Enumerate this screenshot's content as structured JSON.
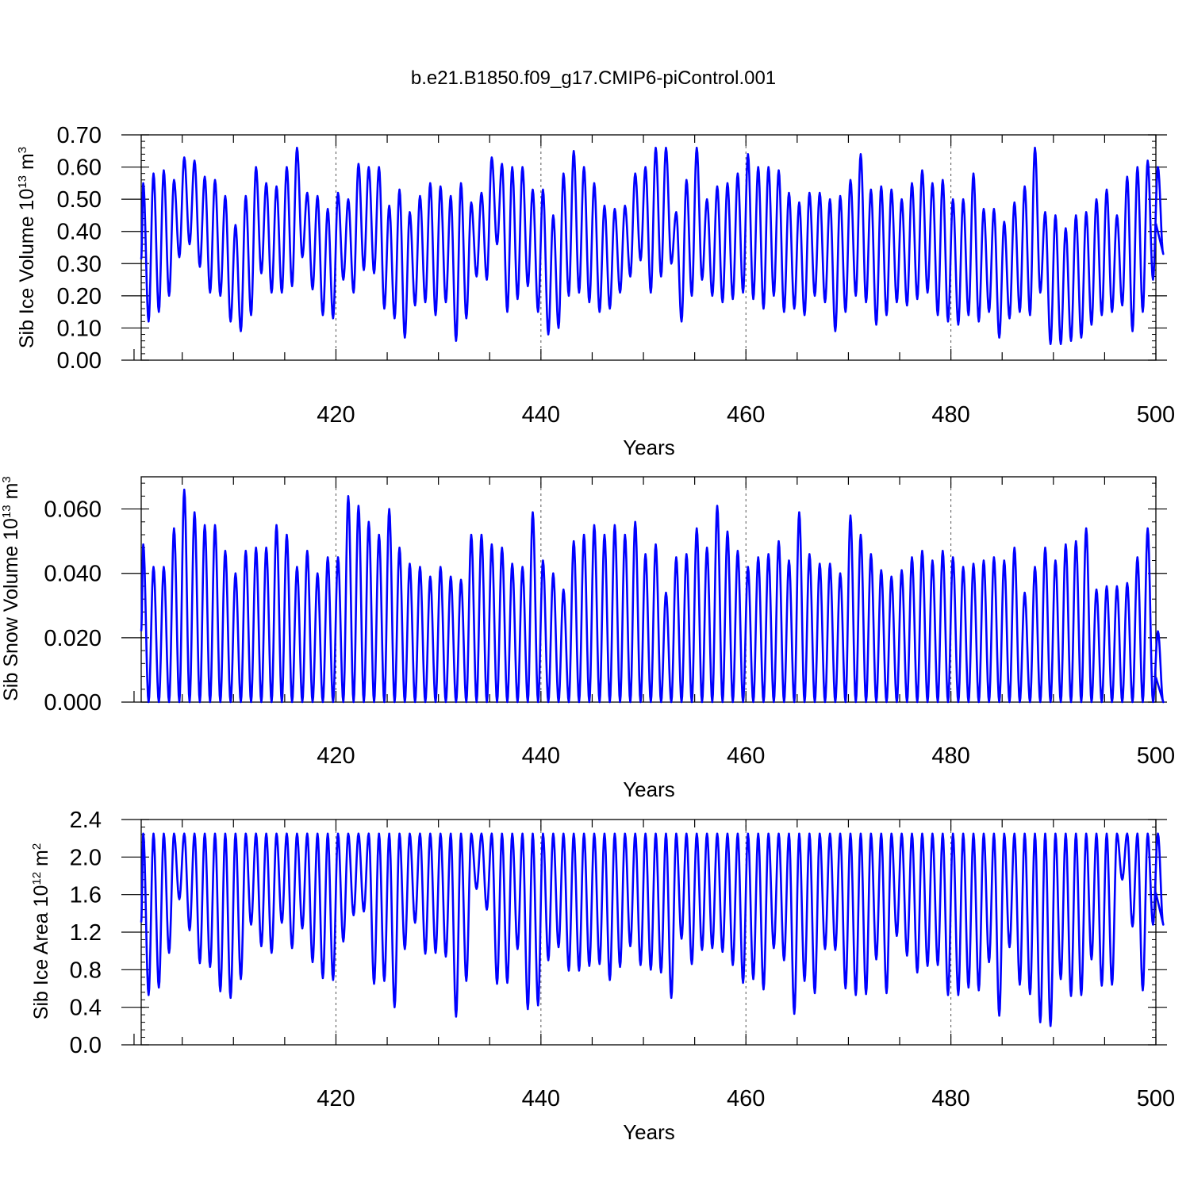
{
  "title": "b.e21.B1850.f09_g17.CMIP6-piControl.001",
  "colors": {
    "line": "#0000ff",
    "axes": "#000000",
    "grid": "#555555"
  },
  "chart_data": [
    {
      "type": "line",
      "name": "ice-volume",
      "xlabel": "Years",
      "ylabel": "Sib Ice Volume 10",
      "ylabel_exp": "13",
      "ylabel_unit": " m",
      "ylabel_unit_exp": "3",
      "xlim": [
        401,
        500
      ],
      "ylim": [
        0,
        0.7
      ],
      "yticks": [
        "0.00",
        "0.10",
        "0.20",
        "0.30",
        "0.40",
        "0.50",
        "0.60",
        "0.70"
      ],
      "xticks": [
        420,
        440,
        460,
        480,
        500
      ],
      "grid_x": [
        420,
        440,
        460,
        480
      ],
      "annual_max": [
        0.55,
        0.58,
        0.59,
        0.56,
        0.63,
        0.62,
        0.57,
        0.56,
        0.51,
        0.42,
        0.51,
        0.6,
        0.55,
        0.54,
        0.6,
        0.66,
        0.52,
        0.51,
        0.47,
        0.52,
        0.5,
        0.61,
        0.6,
        0.6,
        0.48,
        0.53,
        0.46,
        0.51,
        0.55,
        0.54,
        0.51,
        0.55,
        0.49,
        0.52,
        0.63,
        0.61,
        0.6,
        0.6,
        0.53,
        0.53,
        0.45,
        0.58,
        0.65,
        0.6,
        0.55,
        0.48,
        0.47,
        0.48,
        0.58,
        0.6,
        0.66,
        0.66,
        0.46,
        0.56,
        0.66,
        0.5,
        0.54,
        0.55,
        0.58,
        0.64,
        0.6,
        0.6,
        0.59,
        0.52,
        0.49,
        0.52,
        0.52,
        0.5,
        0.51,
        0.56,
        0.64,
        0.53,
        0.54,
        0.53,
        0.5,
        0.55,
        0.59,
        0.55,
        0.56,
        0.5,
        0.5,
        0.58,
        0.47,
        0.47,
        0.43,
        0.49,
        0.54,
        0.66,
        0.46,
        0.45,
        0.41,
        0.45,
        0.46,
        0.5,
        0.53,
        0.45,
        0.57,
        0.6,
        0.62,
        0.6
      ],
      "annual_min": [
        0.12,
        0.15,
        0.2,
        0.32,
        0.36,
        0.29,
        0.21,
        0.2,
        0.12,
        0.09,
        0.14,
        0.27,
        0.21,
        0.21,
        0.23,
        0.32,
        0.22,
        0.14,
        0.13,
        0.25,
        0.21,
        0.28,
        0.27,
        0.16,
        0.13,
        0.07,
        0.17,
        0.18,
        0.14,
        0.18,
        0.06,
        0.13,
        0.26,
        0.25,
        0.36,
        0.15,
        0.19,
        0.23,
        0.15,
        0.08,
        0.1,
        0.2,
        0.21,
        0.18,
        0.15,
        0.16,
        0.21,
        0.26,
        0.31,
        0.21,
        0.26,
        0.3,
        0.12,
        0.2,
        0.25,
        0.2,
        0.18,
        0.19,
        0.21,
        0.19,
        0.16,
        0.2,
        0.15,
        0.16,
        0.14,
        0.2,
        0.18,
        0.09,
        0.15,
        0.2,
        0.18,
        0.11,
        0.14,
        0.18,
        0.17,
        0.19,
        0.21,
        0.14,
        0.12,
        0.11,
        0.14,
        0.12,
        0.15,
        0.07,
        0.13,
        0.15,
        0.14,
        0.21,
        0.05,
        0.05,
        0.06,
        0.07,
        0.11,
        0.14,
        0.15,
        0.17,
        0.09,
        0.15,
        0.25,
        0.33
      ]
    },
    {
      "type": "line",
      "name": "snow-volume",
      "xlabel": "Years",
      "ylabel": "Sib Snow Volume 10",
      "ylabel_exp": "13",
      "ylabel_unit": " m",
      "ylabel_unit_exp": "3",
      "xlim": [
        401,
        500
      ],
      "ylim": [
        0,
        0.07
      ],
      "yticks": [
        "0.000",
        "0.020",
        "0.040",
        "0.060"
      ],
      "ytick_values": [
        0,
        0.02,
        0.04,
        0.06
      ],
      "xticks": [
        420,
        440,
        460,
        480,
        500
      ],
      "grid_x": [
        420,
        440,
        460,
        480
      ],
      "annual_max": [
        0.049,
        0.042,
        0.042,
        0.054,
        0.066,
        0.059,
        0.055,
        0.055,
        0.047,
        0.04,
        0.047,
        0.048,
        0.048,
        0.055,
        0.052,
        0.042,
        0.047,
        0.04,
        0.045,
        0.045,
        0.064,
        0.061,
        0.056,
        0.052,
        0.06,
        0.048,
        0.043,
        0.042,
        0.039,
        0.042,
        0.039,
        0.038,
        0.052,
        0.052,
        0.049,
        0.048,
        0.043,
        0.042,
        0.059,
        0.044,
        0.04,
        0.035,
        0.05,
        0.052,
        0.055,
        0.052,
        0.055,
        0.052,
        0.056,
        0.046,
        0.049,
        0.034,
        0.045,
        0.046,
        0.054,
        0.048,
        0.061,
        0.053,
        0.047,
        0.042,
        0.045,
        0.046,
        0.05,
        0.044,
        0.059,
        0.046,
        0.043,
        0.043,
        0.04,
        0.058,
        0.052,
        0.046,
        0.041,
        0.039,
        0.041,
        0.045,
        0.047,
        0.044,
        0.047,
        0.045,
        0.042,
        0.043,
        0.044,
        0.045,
        0.044,
        0.048,
        0.034,
        0.042,
        0.048,
        0.044,
        0.049,
        0.05,
        0.054,
        0.035,
        0.036,
        0.036,
        0.037,
        0.045,
        0.054,
        0.022
      ],
      "annual_min": [
        0,
        0,
        0,
        0,
        0,
        0,
        0,
        0,
        0,
        0,
        0,
        0,
        0,
        0,
        0,
        0,
        0,
        0,
        0,
        0,
        0,
        0,
        0,
        0,
        0,
        0,
        0,
        0,
        0,
        0,
        0,
        0,
        0,
        0,
        0,
        0,
        0,
        0,
        0,
        0,
        0,
        0,
        0,
        0,
        0,
        0,
        0,
        0,
        0,
        0,
        0,
        0,
        0,
        0,
        0,
        0,
        0,
        0,
        0,
        0,
        0,
        0,
        0,
        0,
        0,
        0,
        0,
        0,
        0,
        0,
        0,
        0,
        0,
        0,
        0,
        0,
        0,
        0,
        0,
        0,
        0,
        0,
        0,
        0,
        0,
        0,
        0,
        0,
        0,
        0,
        0,
        0,
        0,
        0,
        0,
        0,
        0,
        0,
        0,
        0
      ]
    },
    {
      "type": "line",
      "name": "ice-area",
      "xlabel": "Years",
      "ylabel": "Sib Ice Area 10",
      "ylabel_exp": "12",
      "ylabel_unit": " m",
      "ylabel_unit_exp": "2",
      "xlim": [
        401,
        500
      ],
      "ylim": [
        0,
        2.4
      ],
      "yticks": [
        "0.0",
        "0.4",
        "0.8",
        "1.2",
        "1.6",
        "2.0",
        "2.4"
      ],
      "xticks": [
        420,
        440,
        460,
        480,
        500
      ],
      "grid_x": [
        420,
        440,
        460,
        480
      ],
      "annual_max": [
        2.25,
        2.25,
        2.25,
        2.25,
        2.25,
        2.25,
        2.25,
        2.25,
        2.25,
        2.25,
        2.25,
        2.25,
        2.25,
        2.25,
        2.25,
        2.25,
        2.25,
        2.25,
        2.25,
        2.25,
        2.25,
        2.25,
        2.25,
        2.25,
        2.25,
        2.25,
        2.25,
        2.25,
        2.25,
        2.25,
        2.25,
        2.25,
        2.25,
        2.25,
        2.25,
        2.25,
        2.25,
        2.25,
        2.25,
        2.25,
        2.25,
        2.25,
        2.25,
        2.25,
        2.25,
        2.25,
        2.25,
        2.25,
        2.25,
        2.25,
        2.25,
        2.25,
        2.25,
        2.25,
        2.25,
        2.25,
        2.25,
        2.25,
        2.25,
        2.25,
        2.25,
        2.25,
        2.25,
        2.25,
        2.25,
        2.25,
        2.25,
        2.25,
        2.25,
        2.25,
        2.25,
        2.25,
        2.25,
        2.25,
        2.25,
        2.25,
        2.25,
        2.25,
        2.25,
        2.25,
        2.25,
        2.25,
        2.25,
        2.25,
        2.25,
        2.25,
        2.25,
        2.25,
        2.25,
        2.25,
        2.25,
        2.25,
        2.25,
        2.25,
        2.25,
        2.25,
        2.25,
        2.25,
        2.25,
        2.25
      ],
      "annual_min": [
        0.53,
        0.61,
        0.98,
        1.55,
        1.22,
        0.87,
        0.83,
        0.57,
        0.5,
        0.7,
        1.28,
        1.05,
        0.98,
        1.3,
        1.03,
        1.24,
        0.88,
        0.71,
        0.69,
        1.1,
        1.38,
        1.42,
        0.65,
        0.68,
        0.4,
        1.02,
        1.3,
        0.97,
        0.98,
        0.94,
        0.3,
        0.68,
        1.66,
        1.44,
        0.65,
        0.66,
        1.02,
        0.38,
        0.42,
        0.9,
        1.04,
        0.79,
        0.79,
        0.84,
        0.86,
        0.69,
        0.83,
        1.05,
        0.85,
        0.8,
        0.77,
        0.5,
        1.13,
        0.86,
        1.01,
        1.03,
        0.99,
        0.85,
        0.66,
        0.7,
        0.59,
        1.03,
        0.9,
        0.33,
        0.68,
        0.55,
        1.02,
        1.01,
        0.6,
        0.53,
        0.54,
        0.91,
        0.55,
        1.16,
        0.95,
        0.77,
        0.84,
        0.85,
        0.53,
        0.53,
        0.61,
        0.58,
        0.88,
        0.31,
        1.04,
        0.64,
        0.54,
        0.24,
        0.2,
        0.7,
        0.52,
        0.53,
        0.91,
        0.63,
        0.64,
        1.76,
        1.26,
        0.58,
        1.28,
        1.28
      ]
    }
  ]
}
